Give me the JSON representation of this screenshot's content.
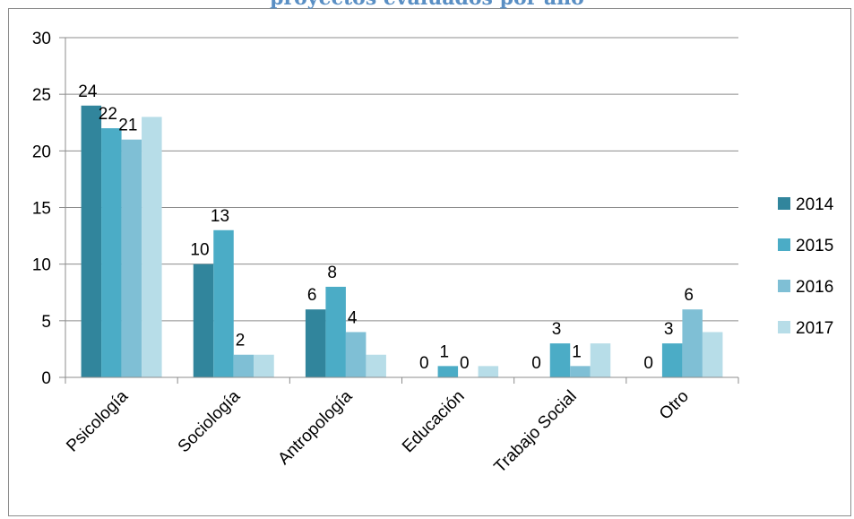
{
  "chart_data": {
    "type": "bar",
    "title": "proyectos evaluados por año",
    "categories": [
      "Psicología",
      "Sociología",
      "Antropología",
      "Educación",
      "Trabajo Social",
      "Otro"
    ],
    "series": [
      {
        "name": "2014",
        "color": "#31859c",
        "values": [
          24,
          10,
          6,
          0,
          0,
          0
        ],
        "labels": [
          true,
          true,
          true,
          true,
          true,
          true
        ]
      },
      {
        "name": "2015",
        "color": "#4bacc6",
        "values": [
          22,
          13,
          8,
          1,
          3,
          3
        ],
        "labels": [
          true,
          true,
          true,
          true,
          true,
          true
        ]
      },
      {
        "name": "2016",
        "color": "#7fbfd5",
        "values": [
          21,
          2,
          4,
          0,
          1,
          6
        ],
        "labels": [
          true,
          true,
          true,
          true,
          true,
          true
        ]
      },
      {
        "name": "2017",
        "color": "#b7dde8",
        "values": [
          23,
          2,
          2,
          1,
          3,
          4
        ],
        "labels": [
          false,
          false,
          false,
          false,
          false,
          false
        ]
      }
    ],
    "ylim": [
      0,
      30
    ],
    "yticks": [
      0,
      5,
      10,
      15,
      20,
      25,
      30
    ],
    "grid": true,
    "legend_position": "right"
  }
}
